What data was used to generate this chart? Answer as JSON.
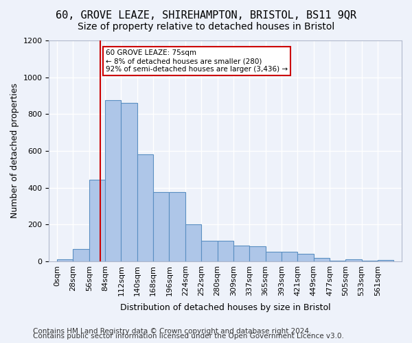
{
  "title1": "60, GROVE LEAZE, SHIREHAMPTON, BRISTOL, BS11 9QR",
  "title2": "Size of property relative to detached houses in Bristol",
  "xlabel": "Distribution of detached houses by size in Bristol",
  "ylabel": "Number of detached properties",
  "bar_labels": [
    "0sqm",
    "28sqm",
    "56sqm",
    "84sqm",
    "112sqm",
    "140sqm",
    "168sqm",
    "196sqm",
    "224sqm",
    "252sqm",
    "280sqm",
    "309sqm",
    "337sqm",
    "365sqm",
    "393sqm",
    "421sqm",
    "449sqm",
    "477sqm",
    "505sqm",
    "533sqm",
    "561sqm"
  ],
  "bar_values": [
    10,
    65,
    445,
    875,
    860,
    580,
    375,
    375,
    200,
    110,
    110,
    85,
    80,
    50,
    50,
    42,
    17,
    5,
    10,
    3,
    8
  ],
  "bar_color": "#aec6e8",
  "bar_edge_color": "#5a8fc2",
  "bg_color": "#eef2fa",
  "grid_color": "#ffffff",
  "vline_color": "#cc0000",
  "annotation_title": "60 GROVE LEAZE: 75sqm",
  "annotation_line1": "← 8% of detached houses are smaller (280)",
  "annotation_line2": "92% of semi-detached houses are larger (3,436) →",
  "annotation_box_color": "#cc0000",
  "footer1": "Contains HM Land Registry data © Crown copyright and database right 2024.",
  "footer2": "Contains public sector information licensed under the Open Government Licence v3.0.",
  "ylim": [
    0,
    1200
  ],
  "yticks": [
    0,
    200,
    400,
    600,
    800,
    1000,
    1200
  ],
  "bin_width": 28,
  "property_size": 75,
  "title1_fontsize": 11,
  "title2_fontsize": 10,
  "axis_label_fontsize": 9,
  "tick_fontsize": 8,
  "footer_fontsize": 7.5
}
